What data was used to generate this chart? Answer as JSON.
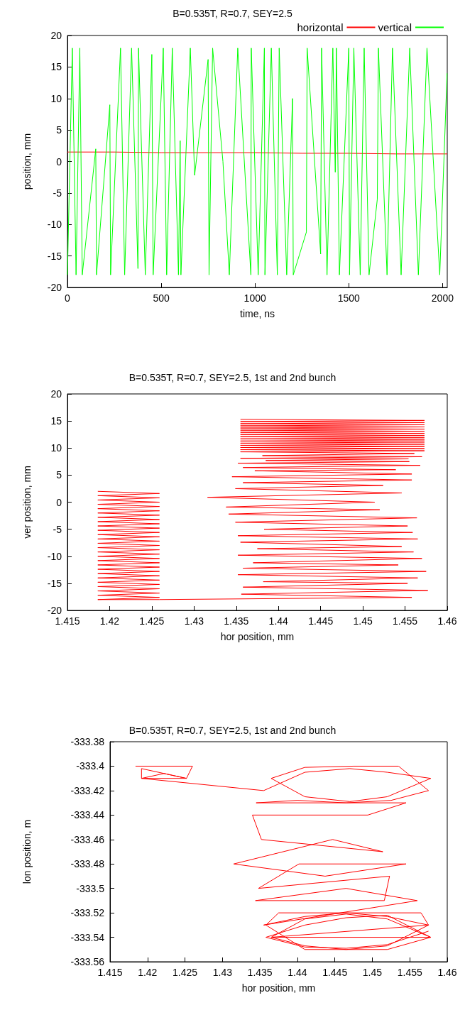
{
  "chart_data": [
    {
      "type": "line",
      "title": "B=0.535T, R=0.7, SEY=2.5",
      "xlabel": "time, ns",
      "ylabel": "position, mm",
      "xlim": [
        0,
        2025
      ],
      "xticks": [
        0,
        500,
        1000,
        1500,
        2000
      ],
      "ylim": [
        -20,
        20
      ],
      "yticks": [
        -20,
        -15,
        -10,
        -5,
        0,
        5,
        10,
        15,
        20
      ],
      "legend": "top right",
      "series": [
        {
          "name": "horizontal",
          "color": "#ff0000",
          "x": [
            0,
            250,
            500,
            750,
            1000,
            1250,
            1500,
            1750,
            2025
          ],
          "values": [
            1.5,
            1.5,
            1.4,
            1.4,
            1.4,
            1.3,
            1.3,
            1.2,
            1.2
          ]
        },
        {
          "name": "vertical",
          "color": "#00ff00",
          "x": [
            0,
            26,
            46,
            66,
            79,
            151,
            155,
            226,
            230,
            283,
            305,
            342,
            376,
            379,
            415,
            450,
            457,
            511,
            529,
            559,
            592,
            601,
            605,
            655,
            678,
            750,
            755,
            774,
            829,
            863,
            908,
            978,
            980,
            1017,
            1050,
            1053,
            1087,
            1119,
            1129,
            1169,
            1200,
            1204,
            1274,
            1278,
            1350,
            1355,
            1384,
            1415,
            1428,
            1434,
            1450,
            1500,
            1504,
            1527,
            1561,
            1582,
            1608,
            1652,
            1658,
            1704,
            1733,
            1779,
            1825,
            1871,
            1917,
            1985,
            2024
          ],
          "values": [
            -18,
            18,
            -18,
            18,
            -18,
            2,
            -18,
            9,
            -18,
            18,
            -18,
            18,
            -17,
            18,
            -18,
            17,
            -18,
            18,
            -18,
            18,
            -18,
            3.3,
            -18,
            18,
            -2.2,
            16.2,
            -18,
            18,
            0,
            -18,
            18,
            -18,
            18,
            -18,
            18,
            -18,
            18,
            -18,
            18,
            -18,
            10,
            -18,
            -11.2,
            18,
            -14.7,
            18,
            -18,
            18,
            -1.7,
            18,
            -18,
            18,
            -18,
            18,
            -18,
            18,
            -18,
            -6,
            18,
            -18,
            18,
            -18,
            18,
            -18,
            18,
            -18,
            14
          ]
        }
      ]
    },
    {
      "type": "line",
      "title": "B=0.535T, R=0.7, SEY=2.5, 1st and 2nd bunch",
      "xlabel": "hor position, mm",
      "ylabel": "ver position, mm",
      "xlim": [
        1.415,
        1.46
      ],
      "xticks": [
        1.415,
        1.42,
        1.425,
        1.43,
        1.435,
        1.44,
        1.445,
        1.45,
        1.455,
        1.46
      ],
      "ylim": [
        -20,
        20
      ],
      "yticks": [
        -20,
        -15,
        -10,
        -5,
        0,
        5,
        10,
        15,
        20
      ],
      "series": [
        {
          "color": "#ff0000",
          "x": [
            1.4186,
            1.4259,
            1.4186,
            1.4259,
            1.4186,
            1.4259,
            1.4186,
            1.4259,
            1.4186,
            1.4259,
            1.4186,
            1.4259,
            1.4186,
            1.4259,
            1.4186,
            1.4259,
            1.4186,
            1.4259,
            1.4186,
            1.4259,
            1.4186,
            1.4259,
            1.4186,
            1.4259,
            1.4186,
            1.4259,
            1.4186,
            1.4259,
            1.4186,
            1.4259,
            1.4186,
            1.4259,
            1.4186,
            1.4259,
            1.4186,
            1.4259,
            1.4186,
            1.4259,
            1.4186,
            1.4259,
            1.4186,
            1.4259,
            1.4186,
            1.4259,
            1.4186,
            1.4259,
            1.4186,
            1.4259,
            1.4186,
            1.4259,
            1.4186,
            1.4259,
            1.4558,
            1.4356,
            1.4577,
            1.4358,
            1.4553,
            1.4382,
            1.4565,
            1.4352,
            1.4575,
            1.4358,
            1.4542,
            1.437,
            1.457,
            1.4352,
            1.456,
            1.4375,
            1.4546,
            1.4355,
            1.4565,
            1.4352,
            1.4559,
            1.4383,
            1.4553,
            1.4349,
            1.4564,
            1.4341,
            1.452,
            1.4338,
            1.4514,
            1.4316,
            1.4546,
            1.4349,
            1.4524,
            1.4358,
            1.4558,
            1.4345,
            1.4558,
            1.4372,
            1.4539,
            1.4358,
            1.4568,
            1.4352,
            1.4555,
            1.4385,
            1.4554,
            1.4355,
            1.457,
            1.4381,
            1.4561,
            1.4355,
            1.4573,
            1.4355,
            1.4573,
            1.4355,
            1.4573,
            1.4355,
            1.4573,
            1.4355,
            1.4573,
            1.4355,
            1.4573,
            1.4355,
            1.4573,
            1.4355,
            1.4573,
            1.4355,
            1.4573,
            1.4355,
            1.4573,
            1.4355,
            1.4573,
            1.4355,
            1.4573,
            1.4355,
            1.4573,
            1.4355,
            1.4573,
            1.4355,
            1.4573,
            1.4355
          ],
          "values": [
            2,
            1.6,
            1.2,
            0.8,
            0.4,
            0,
            -0.4,
            -0.8,
            -1.2,
            -1.6,
            -2,
            -2.4,
            -2.8,
            -3.2,
            -3.6,
            -4,
            -4.4,
            -4.8,
            -5.2,
            -5.6,
            -6,
            -6.4,
            -6.8,
            -7.2,
            -7.6,
            -8,
            -8.4,
            -8.8,
            -9.2,
            -9.6,
            -10,
            -10.4,
            -10.8,
            -11.2,
            -11.6,
            -12,
            -12.4,
            -12.8,
            -13.2,
            -13.6,
            -14,
            -14.4,
            -14.8,
            -15.2,
            -15.6,
            -16,
            -16.4,
            -16.8,
            -17.2,
            -17.6,
            -18,
            -18,
            -17.6,
            -17,
            -16.3,
            -15.7,
            -15,
            -14.7,
            -14,
            -13.4,
            -12.8,
            -12.2,
            -11.6,
            -11.2,
            -10.4,
            -9.8,
            -9.2,
            -8.6,
            -8.2,
            -7.4,
            -6.8,
            -6.2,
            -5.6,
            -5,
            -4.4,
            -3.7,
            -2.9,
            -2.2,
            -1.4,
            -0.9,
            0,
            0.9,
            1.7,
            2.5,
            3.1,
            3.6,
            4.1,
            4.7,
            5.2,
            5.8,
            6,
            6.4,
            6.8,
            7.2,
            7.5,
            7.7,
            8,
            8.1,
            8.4,
            8.6,
            9,
            9.3,
            9.5,
            9.7,
            9.9,
            10.1,
            10.3,
            10.5,
            10.7,
            10.9,
            11.1,
            11.3,
            11.5,
            11.7,
            11.9,
            12.1,
            12.3,
            12.5,
            12.7,
            12.9,
            13.1,
            13.3,
            13.5,
            13.7,
            13.9,
            14.1,
            14.3,
            14.5,
            14.7,
            14.9,
            15.1,
            15.3
          ]
        }
      ]
    },
    {
      "type": "line",
      "title": "B=0.535T, R=0.7, SEY=2.5, 1st and 2nd bunch",
      "xlabel": "hor position, mm",
      "ylabel": "lon position, m",
      "xlim": [
        1.415,
        1.46
      ],
      "xticks": [
        1.415,
        1.42,
        1.425,
        1.43,
        1.435,
        1.44,
        1.445,
        1.45,
        1.455,
        1.46
      ],
      "ylim": [
        -333.56,
        -333.38
      ],
      "yticks": [
        -333.56,
        -333.54,
        -333.52,
        -333.5,
        -333.48,
        -333.46,
        -333.44,
        -333.42,
        -333.4,
        -333.38
      ],
      "series": [
        {
          "color": "#ff0000",
          "x": [
            1.4184,
            1.426,
            1.4252,
            1.4222,
            1.4192,
            1.4192,
            1.4252,
            1.4192,
            1.4355,
            1.441,
            1.447,
            1.452,
            1.4578,
            1.452,
            1.447,
            1.441,
            1.4365,
            1.441,
            1.4475,
            1.4535,
            1.4575,
            1.4525,
            1.4465,
            1.44,
            1.4345,
            1.4545,
            1.4494,
            1.434,
            1.4352,
            1.4514,
            1.4447,
            1.4315,
            1.4437,
            1.4545,
            1.4402,
            1.4348,
            1.4523,
            1.4516,
            1.4344,
            1.4465,
            1.456,
            1.4355,
            1.441,
            1.4465,
            1.452,
            1.4575,
            1.452,
            1.4465,
            1.441,
            1.4365,
            1.441,
            1.4465,
            1.452,
            1.4578,
            1.452,
            1.4465,
            1.441,
            1.4358,
            1.4375,
            1.4565,
            1.4575,
            1.4365,
            1.4578,
            1.452,
            1.4465,
            1.441,
            1.4358,
            1.441,
            1.4465,
            1.452,
            1.4575
          ],
          "values": [
            -333.4,
            -333.4,
            -333.41,
            -333.406,
            -333.41,
            -333.402,
            -333.41,
            -333.41,
            -333.42,
            -333.405,
            -333.402,
            -333.405,
            -333.41,
            -333.425,
            -333.429,
            -333.425,
            -333.41,
            -333.401,
            -333.4,
            -333.4,
            -333.42,
            -333.428,
            -333.43,
            -333.428,
            -333.43,
            -333.43,
            -333.44,
            -333.44,
            -333.46,
            -333.47,
            -333.46,
            -333.48,
            -333.49,
            -333.48,
            -333.48,
            -333.5,
            -333.49,
            -333.51,
            -333.51,
            -333.5,
            -333.51,
            -333.53,
            -333.523,
            -333.52,
            -333.523,
            -333.53,
            -333.547,
            -333.55,
            -333.547,
            -333.54,
            -333.525,
            -333.521,
            -333.525,
            -333.54,
            -333.55,
            -333.55,
            -333.55,
            -333.53,
            -333.52,
            -333.52,
            -333.53,
            -333.54,
            -333.54,
            -333.522,
            -333.524,
            -333.53,
            -333.54,
            -333.548,
            -333.549,
            -333.546,
            -333.535
          ]
        }
      ]
    }
  ]
}
